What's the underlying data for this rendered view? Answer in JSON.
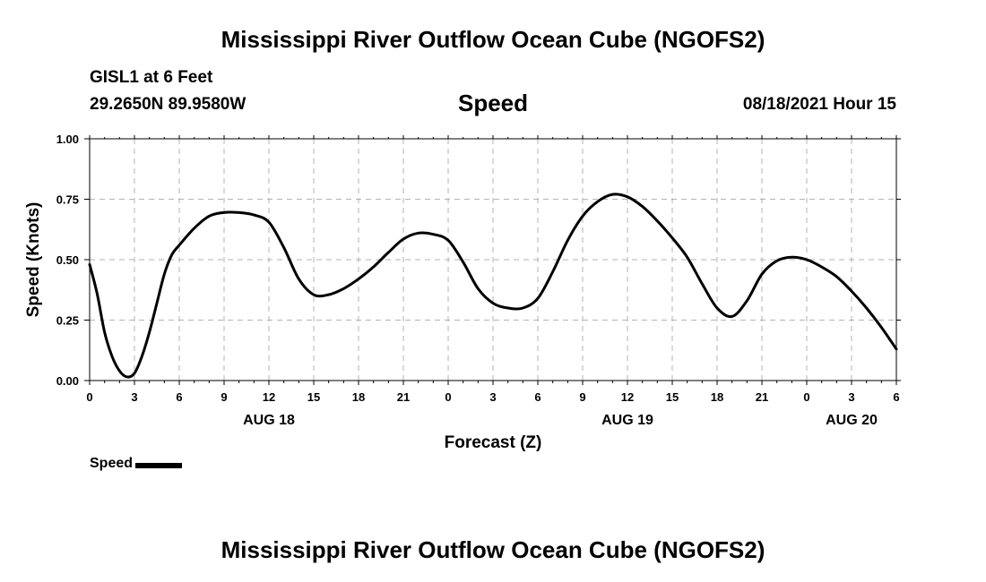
{
  "header": {
    "title": "Mississippi River Outflow Ocean Cube (NGOFS2)",
    "station": "GISL1 at 6 Feet",
    "coords": "29.2650N  89.9580W",
    "variable": "Speed",
    "datetime": "08/18/2021 Hour 15"
  },
  "footer": {
    "title": "Mississippi River Outflow Ocean Cube (NGOFS2)"
  },
  "legend": {
    "label": "Speed"
  },
  "colors": {
    "line": "#000000",
    "grid": "#b3b3b3"
  },
  "chart_data": {
    "type": "line",
    "title": "Speed",
    "xlabel": "Forecast (Z)",
    "ylabel": "Speed (Knots)",
    "xlim": [
      0,
      54
    ],
    "ylim": [
      0,
      1
    ],
    "grid": true,
    "legend_position": "bottom-left",
    "x_ticks": [
      0,
      3,
      6,
      9,
      12,
      15,
      18,
      21,
      24,
      27,
      30,
      33,
      36,
      39,
      42,
      45,
      48,
      51,
      54
    ],
    "x_tick_labels": [
      "0",
      "3",
      "6",
      "9",
      "12",
      "15",
      "18",
      "21",
      "0",
      "3",
      "6",
      "9",
      "12",
      "15",
      "18",
      "21",
      "0",
      "3",
      "6"
    ],
    "y_ticks": [
      0,
      0.25,
      0.5,
      0.75,
      1.0
    ],
    "y_tick_labels": [
      "0.00",
      "0.25",
      "0.50",
      "0.75",
      "1.00"
    ],
    "date_labels": [
      {
        "x": 12,
        "label": "AUG 18"
      },
      {
        "x": 36,
        "label": "AUG 19"
      },
      {
        "x": 51,
        "label": "AUG 20"
      }
    ],
    "series": [
      {
        "name": "Speed",
        "x": [
          0,
          0.5,
          1,
          1.5,
          2,
          2.5,
          3,
          3.5,
          4,
          4.5,
          5,
          5.5,
          6,
          7,
          8,
          9,
          10,
          11,
          12,
          13,
          14,
          15,
          16,
          17,
          18,
          19,
          20,
          21,
          22,
          23,
          24,
          25,
          26,
          27,
          28,
          29,
          30,
          31,
          32,
          33,
          34,
          35,
          36,
          37,
          38,
          39,
          40,
          41,
          42,
          43,
          44,
          45,
          46,
          47,
          48,
          49,
          50,
          51,
          52,
          53,
          54
        ],
        "values": [
          0.48,
          0.36,
          0.2,
          0.1,
          0.04,
          0.015,
          0.03,
          0.1,
          0.2,
          0.32,
          0.44,
          0.52,
          0.56,
          0.63,
          0.68,
          0.695,
          0.695,
          0.685,
          0.655,
          0.55,
          0.42,
          0.355,
          0.355,
          0.38,
          0.42,
          0.47,
          0.53,
          0.585,
          0.61,
          0.605,
          0.58,
          0.49,
          0.38,
          0.32,
          0.3,
          0.3,
          0.34,
          0.45,
          0.58,
          0.68,
          0.74,
          0.77,
          0.76,
          0.72,
          0.66,
          0.59,
          0.51,
          0.4,
          0.3,
          0.265,
          0.33,
          0.44,
          0.495,
          0.51,
          0.5,
          0.47,
          0.43,
          0.37,
          0.3,
          0.22,
          0.13
        ]
      }
    ]
  }
}
